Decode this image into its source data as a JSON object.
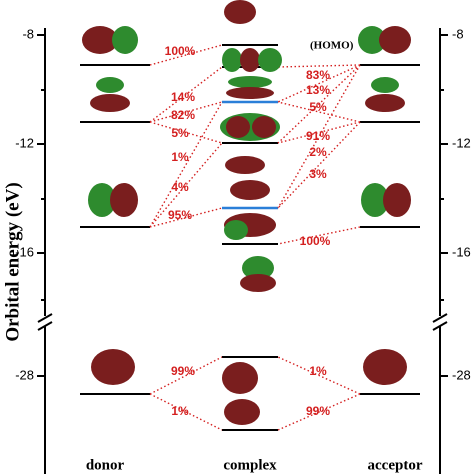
{
  "axis": {
    "label": "Orbital energy (eV)",
    "left_ticks": [
      "-8",
      "-12",
      "-16",
      "-28"
    ],
    "right_ticks": [
      "-8",
      "-12",
      "-16",
      "-28"
    ]
  },
  "columns": [
    "donor",
    "complex",
    "acceptor"
  ],
  "homo_label": "(HOMO)",
  "percentages": [
    "100%",
    "14%",
    "82%",
    "5%",
    "1%",
    "4%",
    "95%",
    "83%",
    "13%",
    "5%",
    "91%",
    "2%",
    "3%",
    "100%",
    "99%",
    "1%",
    "1%",
    "99%"
  ]
}
